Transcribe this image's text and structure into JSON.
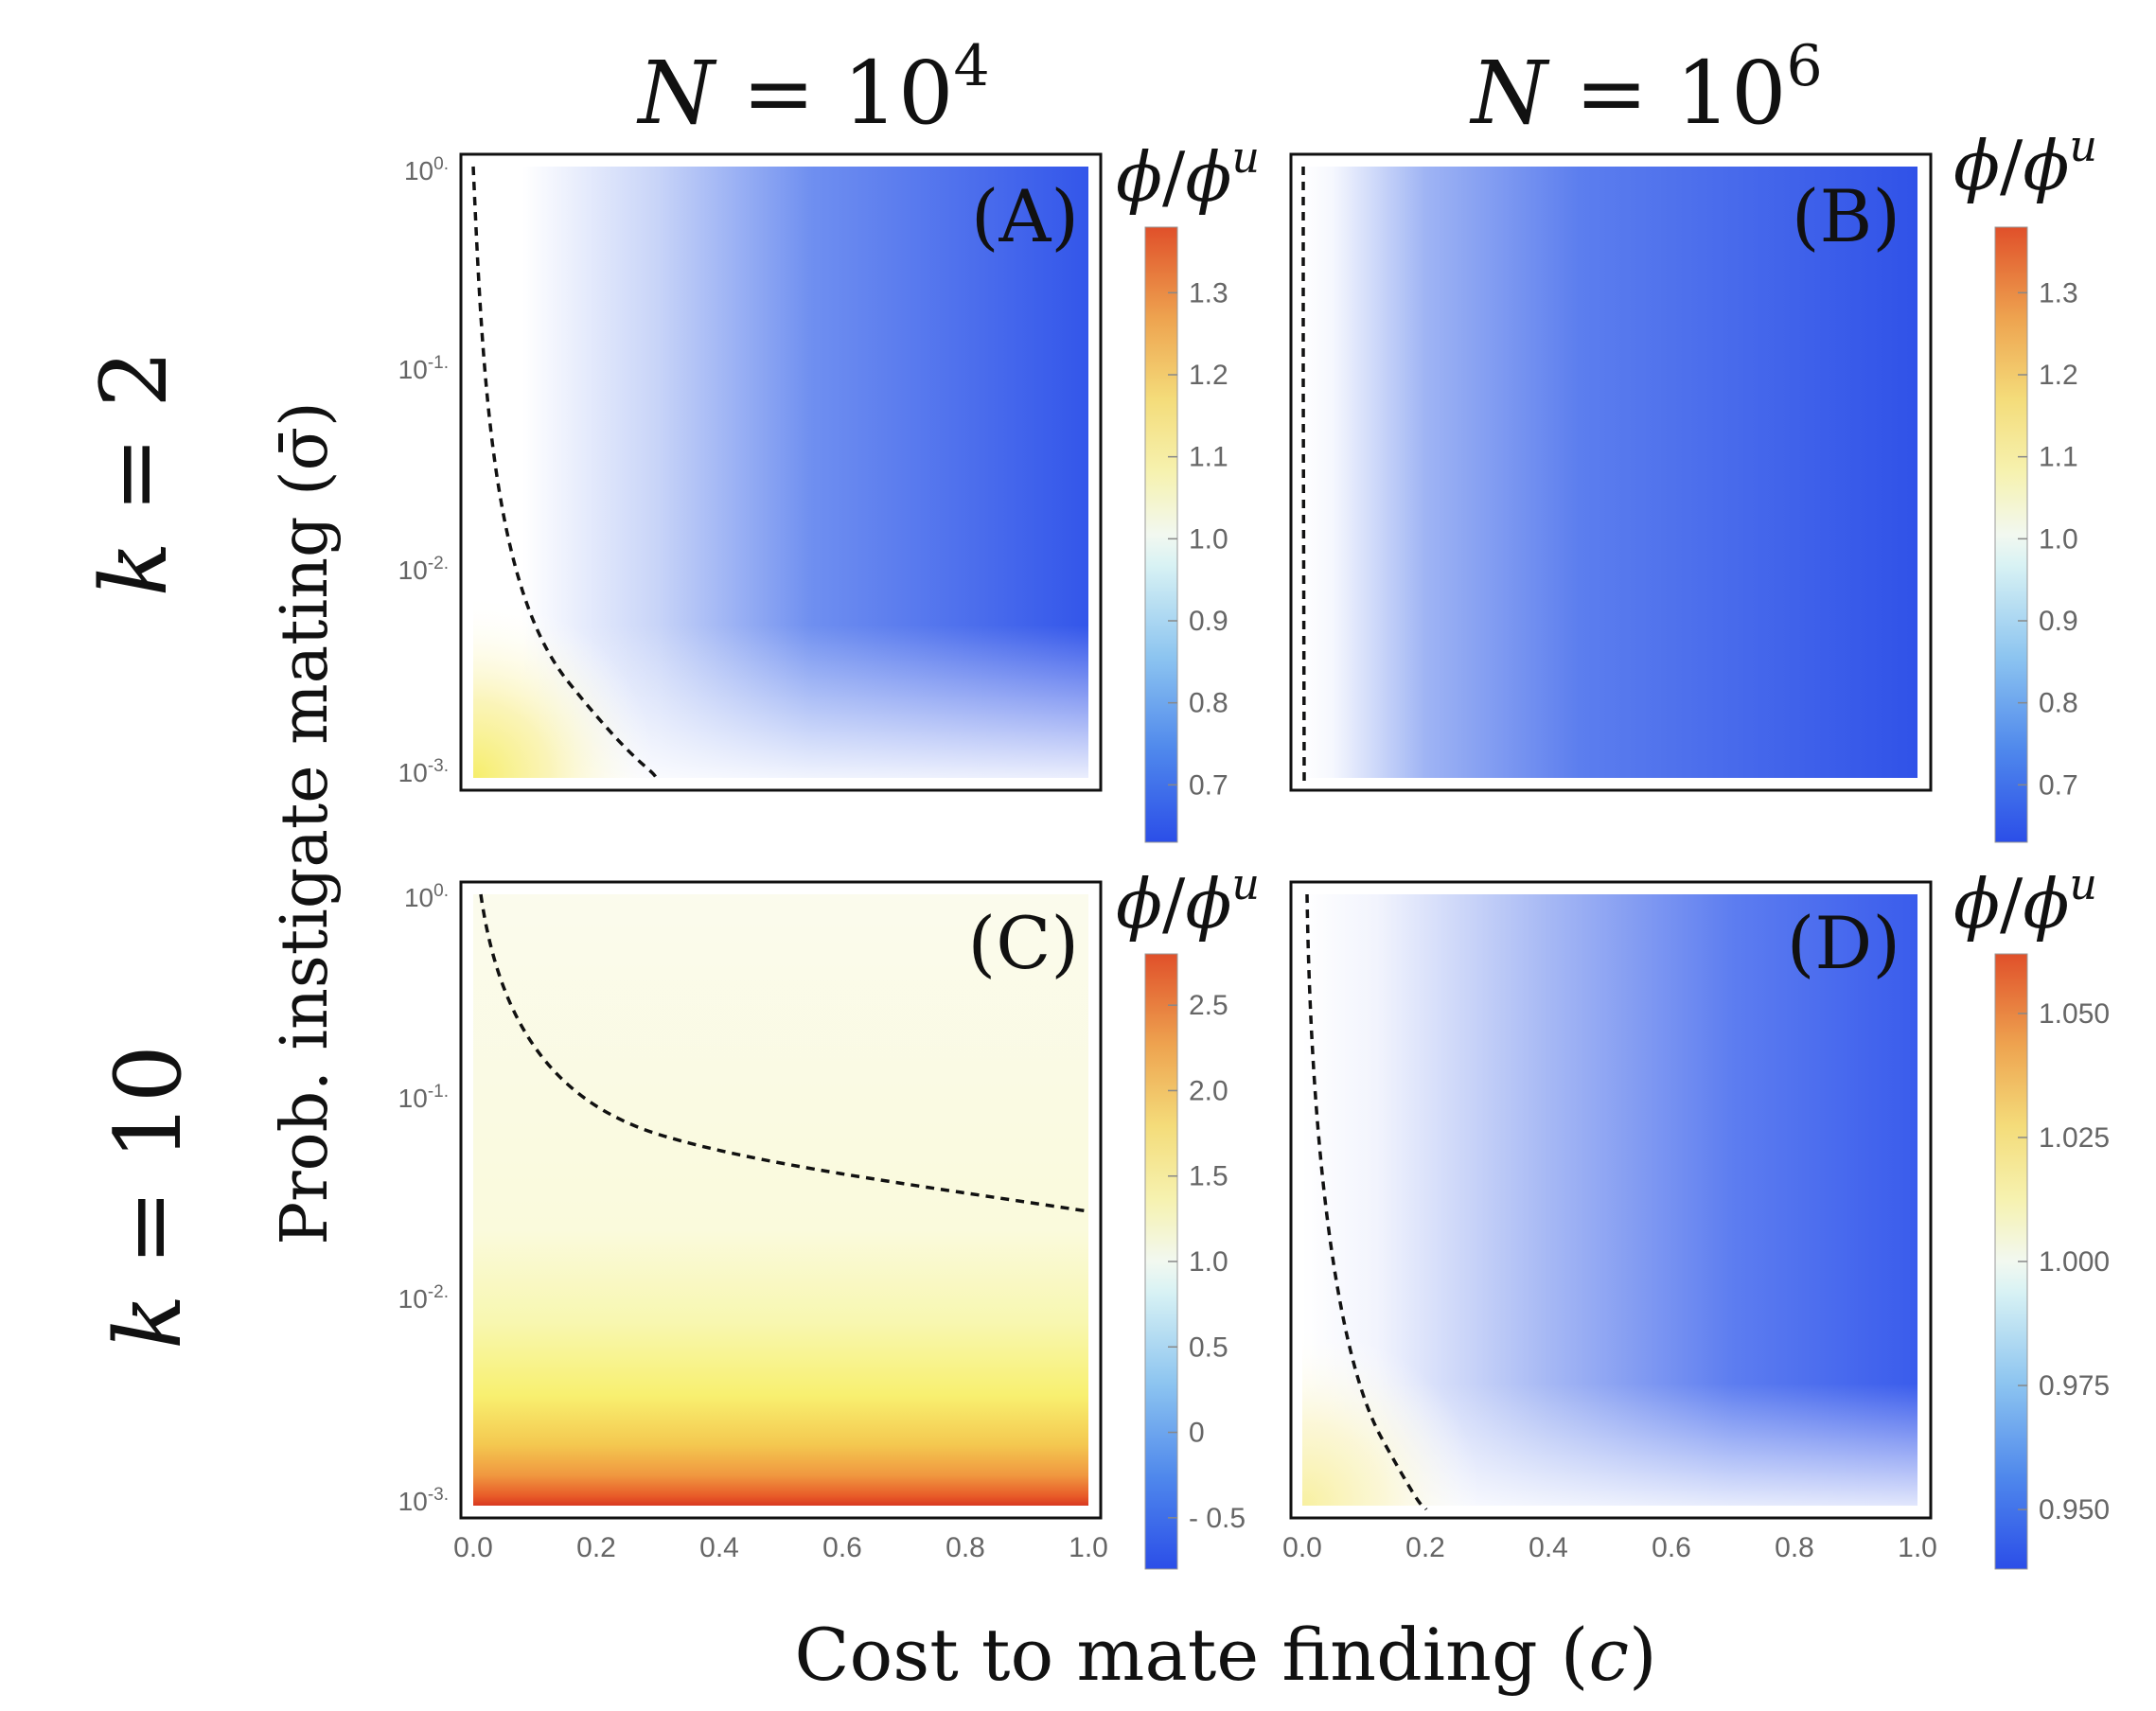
{
  "columns": {
    "left": {
      "prefix": "N",
      "eq": " = ",
      "base": "10",
      "exp": "4"
    },
    "right": {
      "prefix": "N",
      "eq": " = ",
      "base": "10",
      "exp": "6"
    }
  },
  "rows": {
    "top": {
      "var": "k",
      "eq": " = ",
      "val": "2"
    },
    "bottom": {
      "var": "k",
      "eq": " = ",
      "val": "10"
    }
  },
  "axes": {
    "ylabel": "Prob. instigate mating (σ̄)",
    "xlabel_text": "Cost to mate finding (",
    "xlabel_var": "c",
    "xlabel_close": ")",
    "x_ticks": [
      "0.0",
      "0.2",
      "0.4",
      "0.6",
      "0.8",
      "1.0"
    ],
    "y_ticks": [
      {
        "base": "10",
        "exp": "0."
      },
      {
        "base": "10",
        "exp": "-1."
      },
      {
        "base": "10",
        "exp": "-2."
      },
      {
        "base": "10",
        "exp": "-3."
      }
    ]
  },
  "colorbar_title": {
    "num": "ϕ",
    "sep": "/",
    "den": "ϕ",
    "sup": "u"
  },
  "colors": {
    "low": "#2b4ee8",
    "white": "#ffffff",
    "lightcyan": "#e9f8f8",
    "yellow": "#f8f07a",
    "orange": "#f0a040",
    "high": "#e04a20"
  },
  "chart_data": [
    {
      "panel": "(A)",
      "type": "heatmap",
      "xlabel": "Cost to mate finding (c)",
      "ylabel": "Prob. instigate mating (σ̄)",
      "xlim": [
        0,
        1
      ],
      "ylim": [
        0.001,
        1
      ],
      "ylog": true,
      "colorbar": {
        "label": "ϕ/ϕu",
        "ticks": [
          0.7,
          0.8,
          0.9,
          1.0,
          1.1,
          1.2,
          1.3
        ],
        "range": [
          0.63,
          1.38
        ]
      },
      "contour": [
        [
          0.01,
          1.0
        ],
        [
          0.02,
          0.3
        ],
        [
          0.03,
          0.1
        ],
        [
          0.05,
          0.03
        ],
        [
          0.08,
          0.01
        ],
        [
          0.12,
          0.005
        ],
        [
          0.2,
          0.002
        ],
        [
          0.3,
          0.001
        ]
      ],
      "grid": [
        [
          0.0,
          0.001,
          1.2
        ],
        [
          0.1,
          0.001,
          1.05
        ],
        [
          1.0,
          0.001,
          0.95
        ],
        [
          0.1,
          0.1,
          0.98
        ],
        [
          0.3,
          1.0,
          0.82
        ],
        [
          1.0,
          1.0,
          0.65
        ],
        [
          1.0,
          0.1,
          0.66
        ]
      ]
    },
    {
      "panel": "(B)",
      "type": "heatmap",
      "xlabel": "Cost to mate finding (c)",
      "ylabel": "Prob. instigate mating (σ̄)",
      "xlim": [
        0,
        1
      ],
      "ylim": [
        0.001,
        1
      ],
      "ylog": true,
      "colorbar": {
        "label": "ϕ/ϕu",
        "ticks": [
          0.7,
          0.8,
          0.9,
          1.0,
          1.1,
          1.2,
          1.3
        ],
        "range": [
          0.63,
          1.38
        ]
      },
      "contour": [
        [
          0.01,
          1.0
        ],
        [
          0.01,
          0.001
        ]
      ],
      "grid": [
        [
          0.0,
          0.5,
          1.0
        ],
        [
          0.1,
          0.5,
          0.9
        ],
        [
          0.3,
          0.5,
          0.75
        ],
        [
          1.0,
          0.5,
          0.65
        ]
      ]
    },
    {
      "panel": "(C)",
      "type": "heatmap",
      "xlabel": "Cost to mate finding (c)",
      "ylabel": "Prob. instigate mating (σ̄)",
      "xlim": [
        0,
        1
      ],
      "ylim": [
        0.001,
        1
      ],
      "ylog": true,
      "colorbar": {
        "label": "ϕ/ϕu",
        "ticks": [
          -0.5,
          0,
          0.5,
          1.0,
          1.5,
          2.0,
          2.5
        ],
        "range": [
          -0.8,
          2.8
        ]
      },
      "contour": [
        [
          0.02,
          1.0
        ],
        [
          0.05,
          0.3
        ],
        [
          0.1,
          0.15
        ],
        [
          0.2,
          0.08
        ],
        [
          0.4,
          0.05
        ],
        [
          0.6,
          0.037
        ],
        [
          0.8,
          0.031
        ],
        [
          1.0,
          0.027
        ]
      ],
      "grid": [
        [
          0.5,
          1.0,
          1.02
        ],
        [
          0.5,
          0.01,
          1.05
        ],
        [
          0.5,
          0.003,
          1.2
        ],
        [
          0.5,
          0.0015,
          1.6
        ],
        [
          0.5,
          0.001,
          2.7
        ]
      ]
    },
    {
      "panel": "(D)",
      "type": "heatmap",
      "xlabel": "Cost to mate finding (c)",
      "ylabel": "Prob. instigate mating (σ̄)",
      "xlim": [
        0,
        1
      ],
      "ylim": [
        0.001,
        1
      ],
      "ylog": true,
      "colorbar": {
        "label": "ϕ/ϕu",
        "ticks": [
          0.95,
          0.975,
          1.0,
          1.025,
          1.05
        ],
        "range": [
          0.938,
          1.062
        ]
      },
      "contour": [
        [
          0.01,
          1.0
        ],
        [
          0.02,
          0.1
        ],
        [
          0.04,
          0.02
        ],
        [
          0.07,
          0.005
        ],
        [
          0.12,
          0.002
        ],
        [
          0.2,
          0.001
        ]
      ],
      "grid": [
        [
          0.0,
          0.001,
          1.01
        ],
        [
          0.2,
          0.001,
          1.0
        ],
        [
          1.0,
          0.001,
          0.99
        ],
        [
          1.0,
          1.0,
          0.945
        ],
        [
          0.3,
          0.5,
          0.97
        ]
      ]
    }
  ]
}
